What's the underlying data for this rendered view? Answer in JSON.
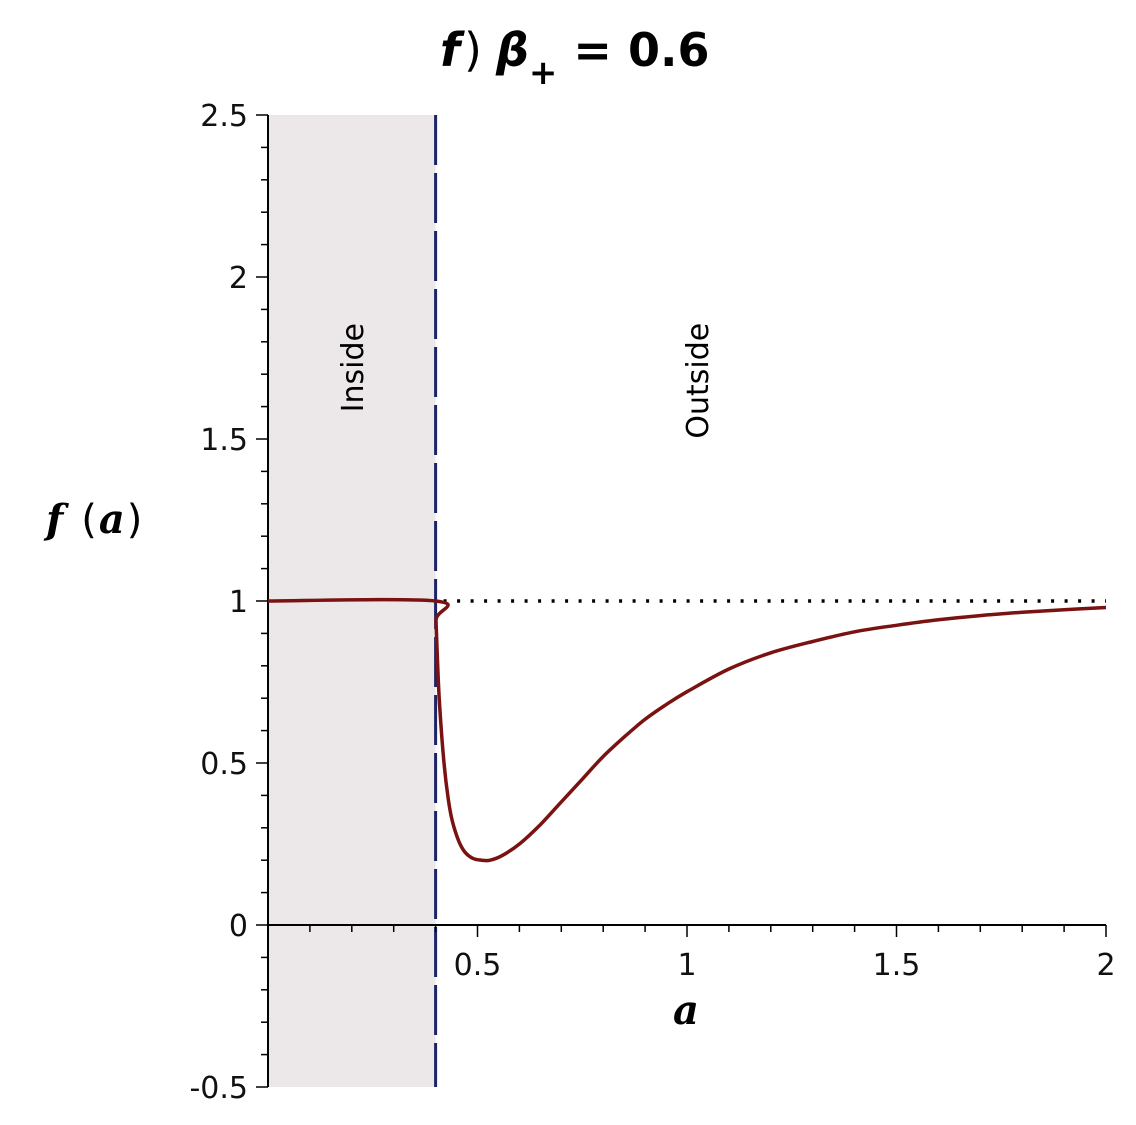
{
  "chart_data": {
    "type": "line",
    "title": {
      "prefix": "f",
      "paren": ")",
      "symbol": "β",
      "subscript": "+",
      "rest": " = 0.6"
    },
    "xlabel": "a",
    "ylabel": {
      "fn": "f",
      "open": "(",
      "arg": "a",
      "close": ")"
    },
    "xlim": [
      0,
      2
    ],
    "ylim": [
      -0.5,
      2.5
    ],
    "xticks": [
      {
        "value": 0.5,
        "label": "0.5"
      },
      {
        "value": 1,
        "label": "1"
      },
      {
        "value": 1.5,
        "label": "1.5"
      },
      {
        "value": 2,
        "label": "2"
      }
    ],
    "yticks": [
      {
        "value": -0.5,
        "label": "-0.5"
      },
      {
        "value": 0,
        "label": "0"
      },
      {
        "value": 0.5,
        "label": "0.5"
      },
      {
        "value": 1,
        "label": "1"
      },
      {
        "value": 1.5,
        "label": "1.5"
      },
      {
        "value": 2,
        "label": "2"
      },
      {
        "value": 2.5,
        "label": "2.5"
      }
    ],
    "regions": [
      {
        "label": "Inside",
        "x_from": 0,
        "x_to": 0.4,
        "shaded": true
      },
      {
        "label": "Outside",
        "x_from": 0.4,
        "x_to": 2,
        "shaded": false
      }
    ],
    "boundary_x": 0.4,
    "reference_line": {
      "y": 1,
      "x_from": 0.4,
      "x_to": 2,
      "style": "dotted"
    },
    "series": [
      {
        "color": "#7a1212",
        "points": [
          [
            0,
            1.0
          ],
          [
            0.4,
            1.0
          ],
          [
            0.401,
            0.94
          ],
          [
            0.405,
            0.8
          ],
          [
            0.41,
            0.67
          ],
          [
            0.42,
            0.5
          ],
          [
            0.43,
            0.39
          ],
          [
            0.44,
            0.32
          ],
          [
            0.455,
            0.26
          ],
          [
            0.47,
            0.225
          ],
          [
            0.49,
            0.205
          ],
          [
            0.51,
            0.2
          ],
          [
            0.53,
            0.2
          ],
          [
            0.56,
            0.215
          ],
          [
            0.6,
            0.25
          ],
          [
            0.65,
            0.31
          ],
          [
            0.7,
            0.38
          ],
          [
            0.75,
            0.45
          ],
          [
            0.8,
            0.52
          ],
          [
            0.85,
            0.58
          ],
          [
            0.9,
            0.635
          ],
          [
            0.95,
            0.68
          ],
          [
            1.0,
            0.72
          ],
          [
            1.1,
            0.79
          ],
          [
            1.2,
            0.84
          ],
          [
            1.3,
            0.875
          ],
          [
            1.4,
            0.905
          ],
          [
            1.5,
            0.925
          ],
          [
            1.6,
            0.942
          ],
          [
            1.7,
            0.955
          ],
          [
            1.8,
            0.965
          ],
          [
            1.9,
            0.973
          ],
          [
            2.0,
            0.98
          ]
        ]
      }
    ],
    "colors": {
      "curve": "#7a1212",
      "shade": "#ece8ea",
      "boundary": "#1b2466",
      "reference": "#000000"
    },
    "grid": false,
    "legend": "none"
  }
}
